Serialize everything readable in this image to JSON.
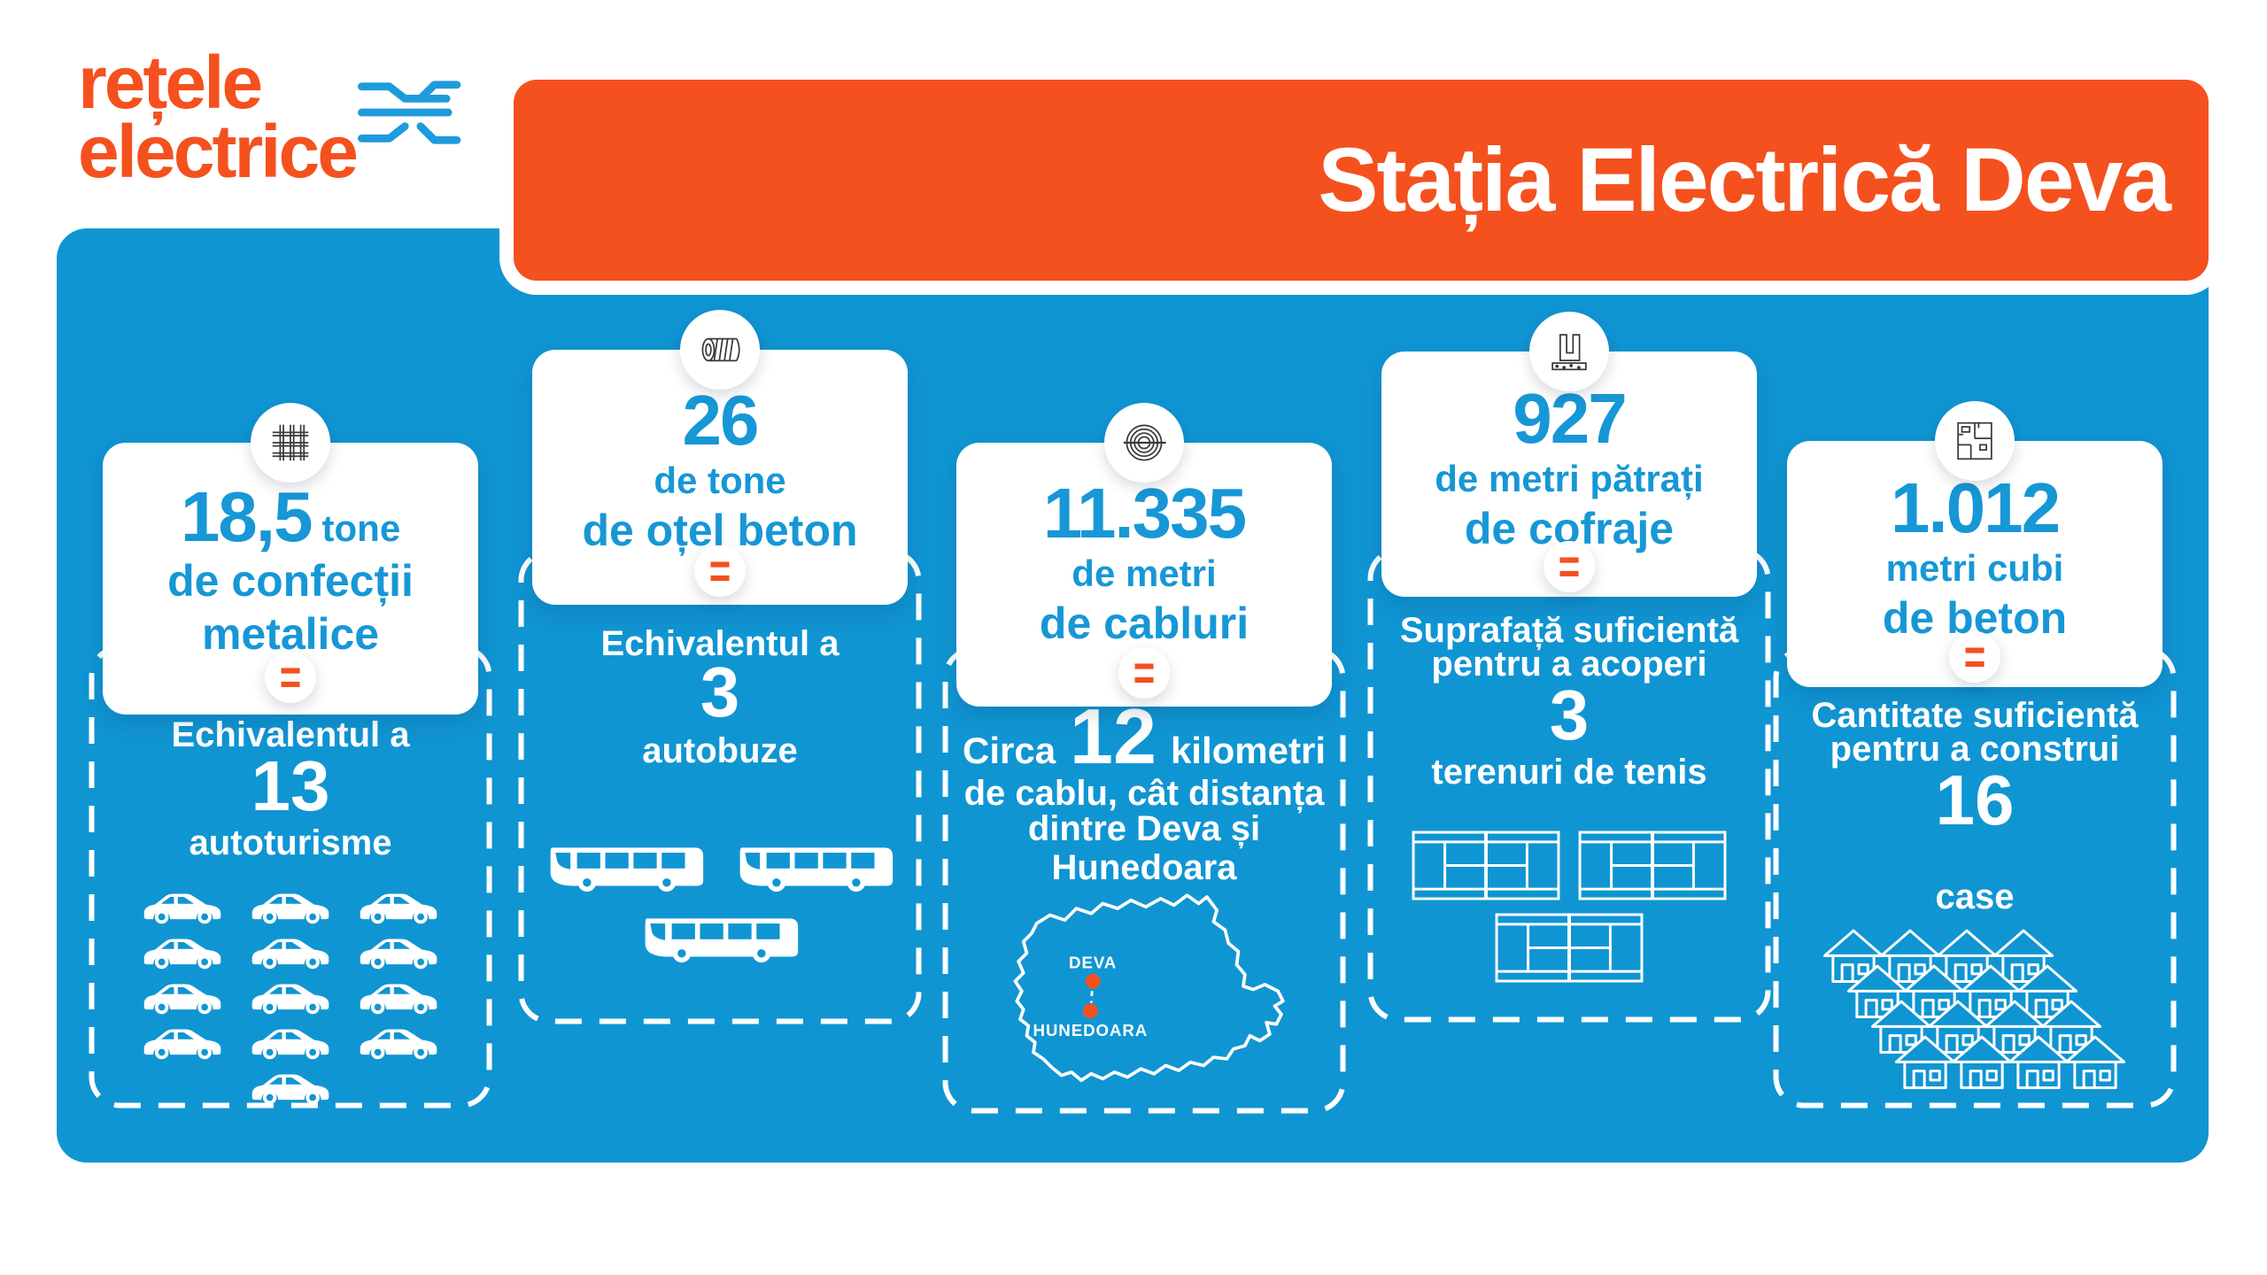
{
  "logo": {
    "line1": "rețele",
    "line2": "electrice",
    "icon": "network-circuit-icon"
  },
  "banner": {
    "title": "Stația Electrică Deva"
  },
  "equals_symbol": "=",
  "colors": {
    "panel_blue": "#1095D3",
    "accent_orange": "#F4511E",
    "text_blue": "#1797D6",
    "white": "#FFFFFF"
  },
  "columns": [
    {
      "name": "confectii-metalice",
      "icon": "metal-mesh-icon",
      "card": {
        "value": "18,5",
        "unit": "tone",
        "line2": "de confecții",
        "line3": "metalice"
      },
      "equiv": {
        "intro": "Echivalentul a",
        "value": "13",
        "label": "autoturisme"
      },
      "pictogram": {
        "type": "car",
        "count": 13
      }
    },
    {
      "name": "otel-beton",
      "icon": "rebar-icon",
      "card": {
        "value": "26",
        "line2": "de tone",
        "line3": "de oțel beton"
      },
      "equiv": {
        "intro": "Echivalentul a",
        "value": "3",
        "label": "autobuze"
      },
      "pictogram": {
        "type": "bus",
        "count": 3
      }
    },
    {
      "name": "cabluri",
      "icon": "cable-coil-icon",
      "card": {
        "value": "11.335",
        "line2": "de metri",
        "line3": "de cabluri"
      },
      "equiv": {
        "intro": "Circa",
        "value": "12",
        "after": "kilometri",
        "line2": "de cablu, cât distanța",
        "line3": "dintre Deva și Hunedoara"
      },
      "map": {
        "city_top": "DEVA",
        "city_bottom": "HUNEDOARA"
      }
    },
    {
      "name": "cofraje",
      "icon": "formwork-icon",
      "card": {
        "value": "927",
        "line2": "de metri pătrați",
        "line3": "de cofraje"
      },
      "equiv": {
        "intro": "Suprafață suficientă",
        "intro2": "pentru a acoperi",
        "value": "3",
        "label": "terenuri de tenis"
      },
      "pictogram": {
        "type": "tennis-court",
        "count": 3
      }
    },
    {
      "name": "beton",
      "icon": "floor-plan-icon",
      "card": {
        "value": "1.012",
        "line2": "metri cubi",
        "line3": "de beton"
      },
      "equiv": {
        "intro": "Cantitate suficientă",
        "intro2": "pentru a construi",
        "value": "16",
        "label": "case"
      },
      "pictogram": {
        "type": "house",
        "count": 16
      }
    }
  ]
}
